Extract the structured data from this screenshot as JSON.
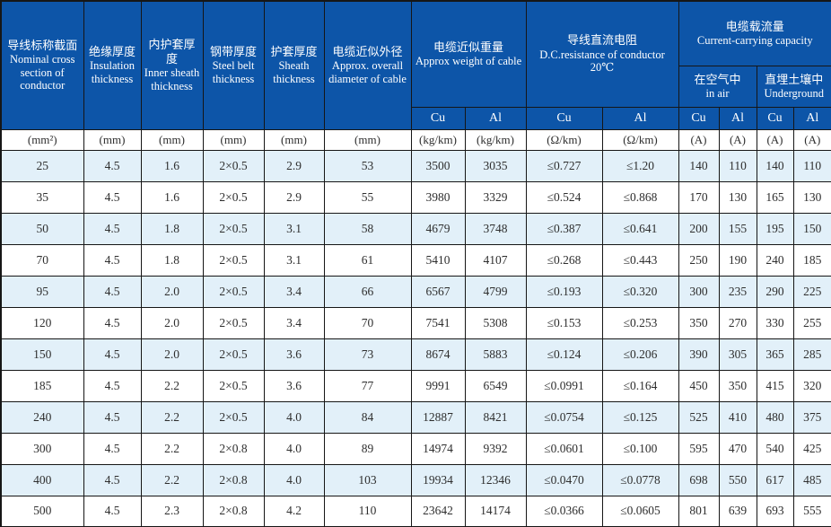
{
  "table": {
    "header": {
      "col_section": {
        "cn": "导线标称截面",
        "en": "Nominal cross section of conductor"
      },
      "col_insulation": {
        "cn": "绝缘厚度",
        "en": "Insulation thickness"
      },
      "col_inner_sheath": {
        "cn": "内护套厚度",
        "en": "Inner sheath thickness"
      },
      "col_steel_belt": {
        "cn": "钢带厚度",
        "en": "Steel belt thickness"
      },
      "col_sheath": {
        "cn": "护套厚度",
        "en": "Sheath thickness"
      },
      "col_diameter": {
        "cn": "电缆近似外径",
        "en": "Approx. overall diameter of cable"
      },
      "group_weight": {
        "cn": "电缆近似重量",
        "en": "Approx weight of cable"
      },
      "group_resistance": {
        "cn": "导线直流电阻",
        "en": "D.C.resistance of conductor 20℃"
      },
      "group_capacity": {
        "cn": "电缆载流量",
        "en": "Current-carrying capacity"
      },
      "sub_air": {
        "cn": "在空气中",
        "en": "in air"
      },
      "sub_underground": {
        "cn": "直埋土壤中",
        "en": "Underground"
      },
      "cu": "Cu",
      "al": "Al"
    },
    "units": [
      "(mm²)",
      "(mm)",
      "(mm)",
      "(mm)",
      "(mm)",
      "(mm)",
      "(kg/km)",
      "(kg/km)",
      "(Ω/km)",
      "(Ω/km)",
      "(A)",
      "(A)",
      "(A)",
      "(A)"
    ],
    "rows": [
      [
        "25",
        "4.5",
        "1.6",
        "2×0.5",
        "2.9",
        "53",
        "3500",
        "3035",
        "≤0.727",
        "≤1.20",
        "140",
        "110",
        "140",
        "110"
      ],
      [
        "35",
        "4.5",
        "1.6",
        "2×0.5",
        "2.9",
        "55",
        "3980",
        "3329",
        "≤0.524",
        "≤0.868",
        "170",
        "130",
        "165",
        "130"
      ],
      [
        "50",
        "4.5",
        "1.8",
        "2×0.5",
        "3.1",
        "58",
        "4679",
        "3748",
        "≤0.387",
        "≤0.641",
        "200",
        "155",
        "195",
        "150"
      ],
      [
        "70",
        "4.5",
        "1.8",
        "2×0.5",
        "3.1",
        "61",
        "5410",
        "4107",
        "≤0.268",
        "≤0.443",
        "250",
        "190",
        "240",
        "185"
      ],
      [
        "95",
        "4.5",
        "2.0",
        "2×0.5",
        "3.4",
        "66",
        "6567",
        "4799",
        "≤0.193",
        "≤0.320",
        "300",
        "235",
        "290",
        "225"
      ],
      [
        "120",
        "4.5",
        "2.0",
        "2×0.5",
        "3.4",
        "70",
        "7541",
        "5308",
        "≤0.153",
        "≤0.253",
        "350",
        "270",
        "330",
        "255"
      ],
      [
        "150",
        "4.5",
        "2.0",
        "2×0.5",
        "3.6",
        "73",
        "8674",
        "5883",
        "≤0.124",
        "≤0.206",
        "390",
        "305",
        "365",
        "285"
      ],
      [
        "185",
        "4.5",
        "2.2",
        "2×0.5",
        "3.6",
        "77",
        "9991",
        "6549",
        "≤0.0991",
        "≤0.164",
        "450",
        "350",
        "415",
        "320"
      ],
      [
        "240",
        "4.5",
        "2.2",
        "2×0.5",
        "4.0",
        "84",
        "12887",
        "8421",
        "≤0.0754",
        "≤0.125",
        "525",
        "410",
        "480",
        "375"
      ],
      [
        "300",
        "4.5",
        "2.2",
        "2×0.8",
        "4.0",
        "89",
        "14974",
        "9392",
        "≤0.0601",
        "≤0.100",
        "595",
        "470",
        "540",
        "425"
      ],
      [
        "400",
        "4.5",
        "2.2",
        "2×0.8",
        "4.0",
        "103",
        "19934",
        "12346",
        "≤0.0470",
        "≤0.0778",
        "698",
        "550",
        "617",
        "485"
      ],
      [
        "500",
        "4.5",
        "2.3",
        "2×0.8",
        "4.2",
        "110",
        "23642",
        "14174",
        "≤0.0366",
        "≤0.0605",
        "801",
        "639",
        "693",
        "555"
      ]
    ]
  },
  "colors": {
    "header_bg": "#0d55a8",
    "row_alt_bg": "#e2f0f9",
    "border": "#161616"
  }
}
